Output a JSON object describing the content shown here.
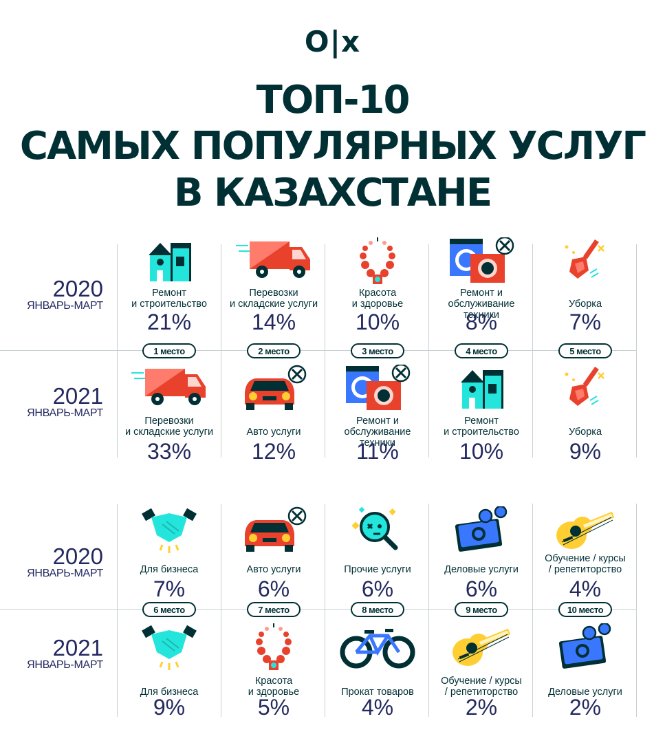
{
  "logo": "O|x",
  "title": {
    "line1": "ТОП-10",
    "line2": "САМЫХ ПОПУЛЯРНЫХ УСЛУГ",
    "line3": "В КАЗАХСТАНЕ"
  },
  "period": "ЯНВАРЬ-МАРТ",
  "years": {
    "y2020": "2020",
    "y2021": "2021"
  },
  "places": [
    "1 место",
    "2 место",
    "3 место",
    "4 место",
    "5 место",
    "6 место",
    "7 место",
    "8 место",
    "9 место",
    "10 место"
  ],
  "top_2020": [
    {
      "label": "Ремонт\nи строительство",
      "pct": "21%",
      "icon": "house-icon"
    },
    {
      "label": "Перевозки\nи складские услуги",
      "pct": "14%",
      "icon": "truck-icon"
    },
    {
      "label": "Красота\nи здоровье",
      "pct": "10%",
      "icon": "necklace-icon"
    },
    {
      "label": "Ремонт и\nобслуживание техники",
      "pct": "8%",
      "icon": "appliances-icon"
    },
    {
      "label": "Уборка",
      "pct": "7%",
      "icon": "broom-icon"
    }
  ],
  "top_2021": [
    {
      "label": "Перевозки\nи складские услуги",
      "pct": "33%",
      "icon": "truck-icon"
    },
    {
      "label": "Авто услуги",
      "pct": "12%",
      "icon": "car-icon"
    },
    {
      "label": "Ремонт и\nобслуживание техники",
      "pct": "11%",
      "icon": "appliances-icon"
    },
    {
      "label": "Ремонт\nи строительство",
      "pct": "10%",
      "icon": "house-icon"
    },
    {
      "label": "Уборка",
      "pct": "9%",
      "icon": "broom-icon"
    }
  ],
  "bottom_2020": [
    {
      "label": "Для бизнеса",
      "pct": "7%",
      "icon": "handshake-icon"
    },
    {
      "label": "Авто услуги",
      "pct": "6%",
      "icon": "car-icon"
    },
    {
      "label": "Прочие услуги",
      "pct": "6%",
      "icon": "magnifier-icon"
    },
    {
      "label": "Деловые услуги",
      "pct": "6%",
      "icon": "money-icon"
    },
    {
      "label": "Обучение / курсы\n/ репетиторство",
      "pct": "4%",
      "icon": "guitar-icon"
    }
  ],
  "bottom_2021": [
    {
      "label": "Для бизнеса",
      "pct": "9%",
      "icon": "handshake-icon"
    },
    {
      "label": "Красота\nи здоровье",
      "pct": "5%",
      "icon": "necklace-icon"
    },
    {
      "label": "Прокат товаров",
      "pct": "4%",
      "icon": "bicycle-icon"
    },
    {
      "label": "Обучение / курсы\n/ репетиторство",
      "pct": "2%",
      "icon": "guitar-icon"
    },
    {
      "label": "Деловые услуги",
      "pct": "2%",
      "icon": "money-icon"
    }
  ],
  "colors": {
    "dark": "#002f34",
    "navy": "#23295f",
    "red": "#e8412c",
    "teal": "#23e5db",
    "blue": "#3a77ff",
    "yellow": "#ffce32"
  }
}
